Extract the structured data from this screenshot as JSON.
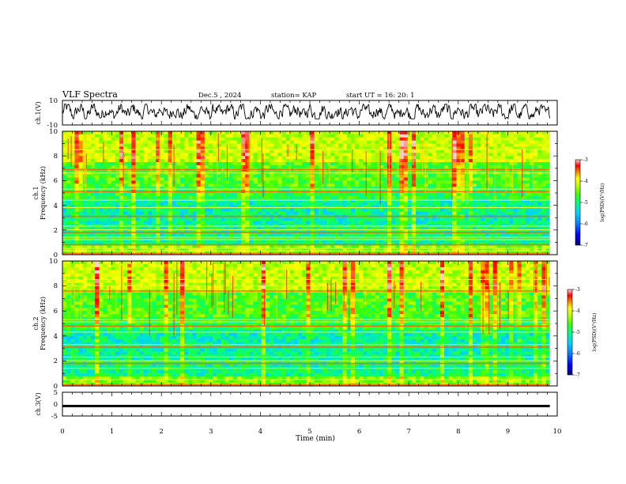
{
  "header": {
    "title": "VLF Spectra",
    "date": "Dec.5  , 2024",
    "station": "station= KAP",
    "start": "start  UT  =   16: 20: 1"
  },
  "colors": {
    "background": "#ffffff",
    "axis": "#000000",
    "colormap": [
      "#000080",
      "#0000ff",
      "#0080ff",
      "#00d0ff",
      "#00ff80",
      "#40ff00",
      "#c0ff00",
      "#ffff00",
      "#ff8000",
      "#ff0000",
      "#ffd0d0"
    ]
  },
  "chart_data": [
    {
      "name_key": "ch1_waveform",
      "type": "line",
      "ylabel": "ch.1(V)",
      "ylim": [
        -10,
        10
      ],
      "yticks": [
        "10",
        "-10"
      ],
      "xlim": [
        0,
        10
      ],
      "series": [
        {
          "amplitude_range": [
            -5,
            7
          ],
          "data_end_min": 9.85
        }
      ]
    },
    {
      "name_key": "ch1_spectrogram",
      "type": "heatmap",
      "ylabel_line1": "ch.1",
      "ylabel_line2": "Frequency  (kHz)",
      "ylim": [
        0,
        10
      ],
      "yticks": [
        "0",
        "2",
        "4",
        "6",
        "8",
        "10"
      ],
      "xlim": [
        0,
        10
      ],
      "data_end_min": 9.85,
      "colorbar": {
        "label": "log(PSD)(V²/Hz)",
        "range": [
          -7,
          -3
        ],
        "ticks": [
          "-3",
          "-4",
          "-5",
          "-6",
          "-7"
        ]
      },
      "bands_khz": [
        0.1,
        0.3,
        0.5,
        0.8,
        1.2,
        1.4,
        1.8,
        2.0,
        2.3,
        3.1,
        3.8,
        4.4,
        5.1,
        5.3,
        6.6,
        6.9,
        8.5
      ]
    },
    {
      "name_key": "ch2_spectrogram",
      "type": "heatmap",
      "ylabel_line1": "ch.2",
      "ylabel_line2": "Frequency  (kHz)",
      "ylim": [
        0,
        10
      ],
      "yticks": [
        "0",
        "2",
        "4",
        "6",
        "8",
        "10"
      ],
      "xlim": [
        0,
        10
      ],
      "data_end_min": 9.85,
      "colorbar": {
        "label": "log(PSD)(V²/Hz)",
        "range": [
          -7,
          -3
        ],
        "ticks": [
          "-3",
          "-4",
          "-5",
          "-6",
          "-7"
        ]
      },
      "bands_khz": [
        0.1,
        0.5,
        1.4,
        1.8,
        2.0,
        2.3,
        3.1,
        3.3,
        4.3,
        4.8,
        5.1,
        5.3,
        7.6,
        8.0,
        8.5
      ]
    },
    {
      "name_key": "ch3_waveform",
      "type": "line",
      "ylabel": "ch.3(V)",
      "ylim": [
        -5,
        5
      ],
      "yticks": [
        "5",
        "0",
        "-5"
      ],
      "xlim": [
        0,
        10
      ],
      "series": [
        {
          "level": -0.8,
          "band_halfwidth": 0.5,
          "data_end_min": 9.85
        }
      ]
    }
  ],
  "xaxis": {
    "label": "Time  (min)",
    "ticks": [
      "0",
      "1",
      "2",
      "3",
      "4",
      "5",
      "6",
      "7",
      "8",
      "9",
      "10"
    ],
    "range": [
      0,
      10
    ]
  }
}
